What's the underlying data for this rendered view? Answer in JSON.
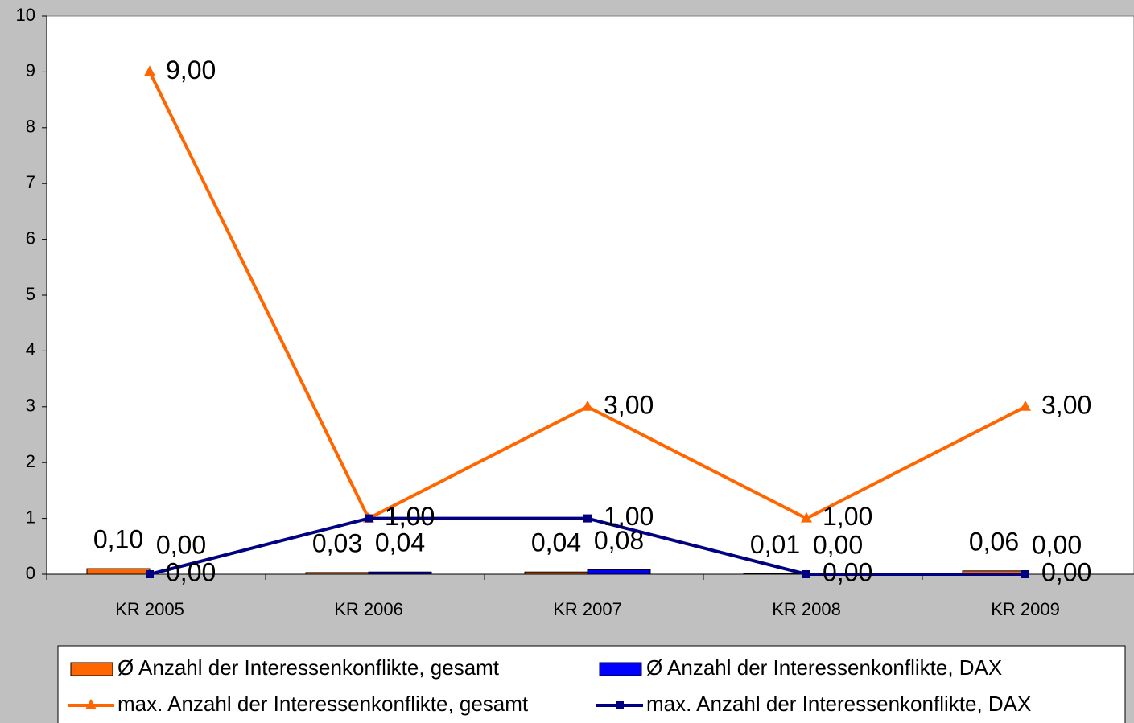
{
  "chart_data": {
    "type": "combo",
    "categories": [
      "KR 2005",
      "KR 2006",
      "KR 2007",
      "KR 2008",
      "KR 2009"
    ],
    "series": [
      {
        "name": "Ø Anzahl der Interessenkonflikte, gesamt",
        "type": "bar",
        "color": "#ff6600",
        "values": [
          0.1,
          0.03,
          0.04,
          0.01,
          0.06
        ],
        "value_labels": [
          "0,10",
          "0,03",
          "0,04",
          "0,01",
          "0,06"
        ]
      },
      {
        "name": "Ø Anzahl der Interessenkonflikte, DAX",
        "type": "bar",
        "color": "#0000ff",
        "values": [
          0.0,
          0.04,
          0.08,
          0.0,
          0.0
        ],
        "value_labels": [
          "0,00",
          "0,04",
          "0,08",
          "0,00",
          "0,00"
        ]
      },
      {
        "name": "max. Anzahl der Interessenkonflikte, gesamt",
        "type": "line",
        "marker": "triangle",
        "color": "#ff6600",
        "values": [
          9,
          1,
          3,
          1,
          3
        ],
        "value_labels": [
          "9,00",
          "1,00",
          "3,00",
          "1,00",
          "3,00"
        ]
      },
      {
        "name": "max. Anzahl der Interessenkonflikte, DAX",
        "type": "line",
        "marker": "square",
        "color": "#000080",
        "values": [
          0,
          1,
          1,
          0,
          0
        ],
        "value_labels": [
          "0,00",
          "1,00",
          "1,00",
          "0,00",
          "0,00"
        ]
      }
    ],
    "ylim": [
      0,
      10
    ],
    "yticks": [
      0,
      1,
      2,
      3,
      4,
      5,
      6,
      7,
      8,
      9,
      10
    ],
    "grid": false
  }
}
